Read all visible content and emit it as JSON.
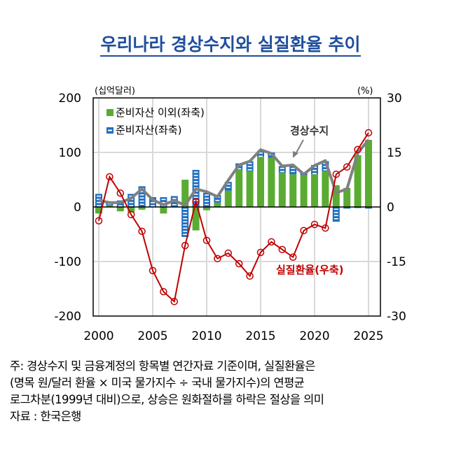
{
  "title": "우리나라 경상수지와 실질환율 추이",
  "notes": [
    "주: 경상수지 및 금융계정의 항목별 연간자료 기준이며, 실질환율은",
    "(명목 원/달러 환율 × 미국 물가지수 ÷ 국내 물가지수)의 연평균",
    "로그차분(1999년 대비)으로, 상승은 원화절하를 하락은 절상을 의미",
    "자료 : 한국은행"
  ],
  "chart_data": {
    "type": "bar+line",
    "left_unit": "(십억달러)",
    "right_unit": "(%)",
    "ylim_left": [
      -200,
      200
    ],
    "ylim_right": [
      -30,
      30
    ],
    "yticks_left": [
      "200",
      "100",
      "0",
      "-100",
      "-200"
    ],
    "yticks_right": [
      "30",
      "15",
      "0",
      "-15",
      "-30"
    ],
    "xticks": [
      "2000",
      "2005",
      "2010",
      "2015",
      "2020",
      "2025"
    ],
    "x": [
      2000,
      2001,
      2002,
      2003,
      2004,
      2005,
      2006,
      2007,
      2008,
      2009,
      2010,
      2011,
      2012,
      2013,
      2014,
      2015,
      2016,
      2017,
      2018,
      2019,
      2020,
      2021,
      2022,
      2023,
      2024,
      2025
    ],
    "grid": true,
    "legend_position": "top-left",
    "series": [
      {
        "name": "준비자산 이외(좌축)",
        "type": "bar",
        "axis": "left",
        "color": "#5aab32",
        "values": [
          -12,
          3,
          -8,
          -10,
          -5,
          0,
          -12,
          0,
          50,
          -43,
          -6,
          8,
          30,
          68,
          66,
          92,
          90,
          63,
          60,
          58,
          60,
          66,
          40,
          35,
          95,
          123
        ]
      },
      {
        "name": "준비자산(좌축)",
        "type": "bar",
        "axis": "left",
        "color": "#1f6fc0",
        "values": [
          24,
          7,
          12,
          24,
          38,
          18,
          18,
          20,
          -55,
          68,
          26,
          14,
          16,
          12,
          18,
          11,
          10,
          12,
          15,
          5,
          17,
          18,
          -27,
          -3,
          -2,
          -3
        ]
      },
      {
        "name": "경상수지",
        "type": "line",
        "axis": "left",
        "color": "#808080",
        "values": [
          12,
          8,
          8,
          16,
          33,
          13,
          4,
          12,
          3,
          33,
          28,
          19,
          49,
          77,
          84,
          105,
          98,
          75,
          77,
          60,
          76,
          85,
          26,
          33,
          99,
          123
        ]
      },
      {
        "name": "실질환율(우축)",
        "type": "line",
        "axis": "right",
        "color": "#c00000",
        "values": [
          -3.8,
          8.3,
          3.8,
          -2.1,
          -6.7,
          -17.5,
          -23.3,
          -26,
          -10.6,
          1.5,
          -9.2,
          -14.2,
          -12.7,
          -15.6,
          -19,
          -12.5,
          -9.6,
          -11.7,
          -13.8,
          -6.5,
          -4.8,
          -5.8,
          9,
          11,
          15.8,
          20.4
        ]
      }
    ],
    "annotations": [
      "경상수지",
      "실질환율(우축)"
    ]
  }
}
